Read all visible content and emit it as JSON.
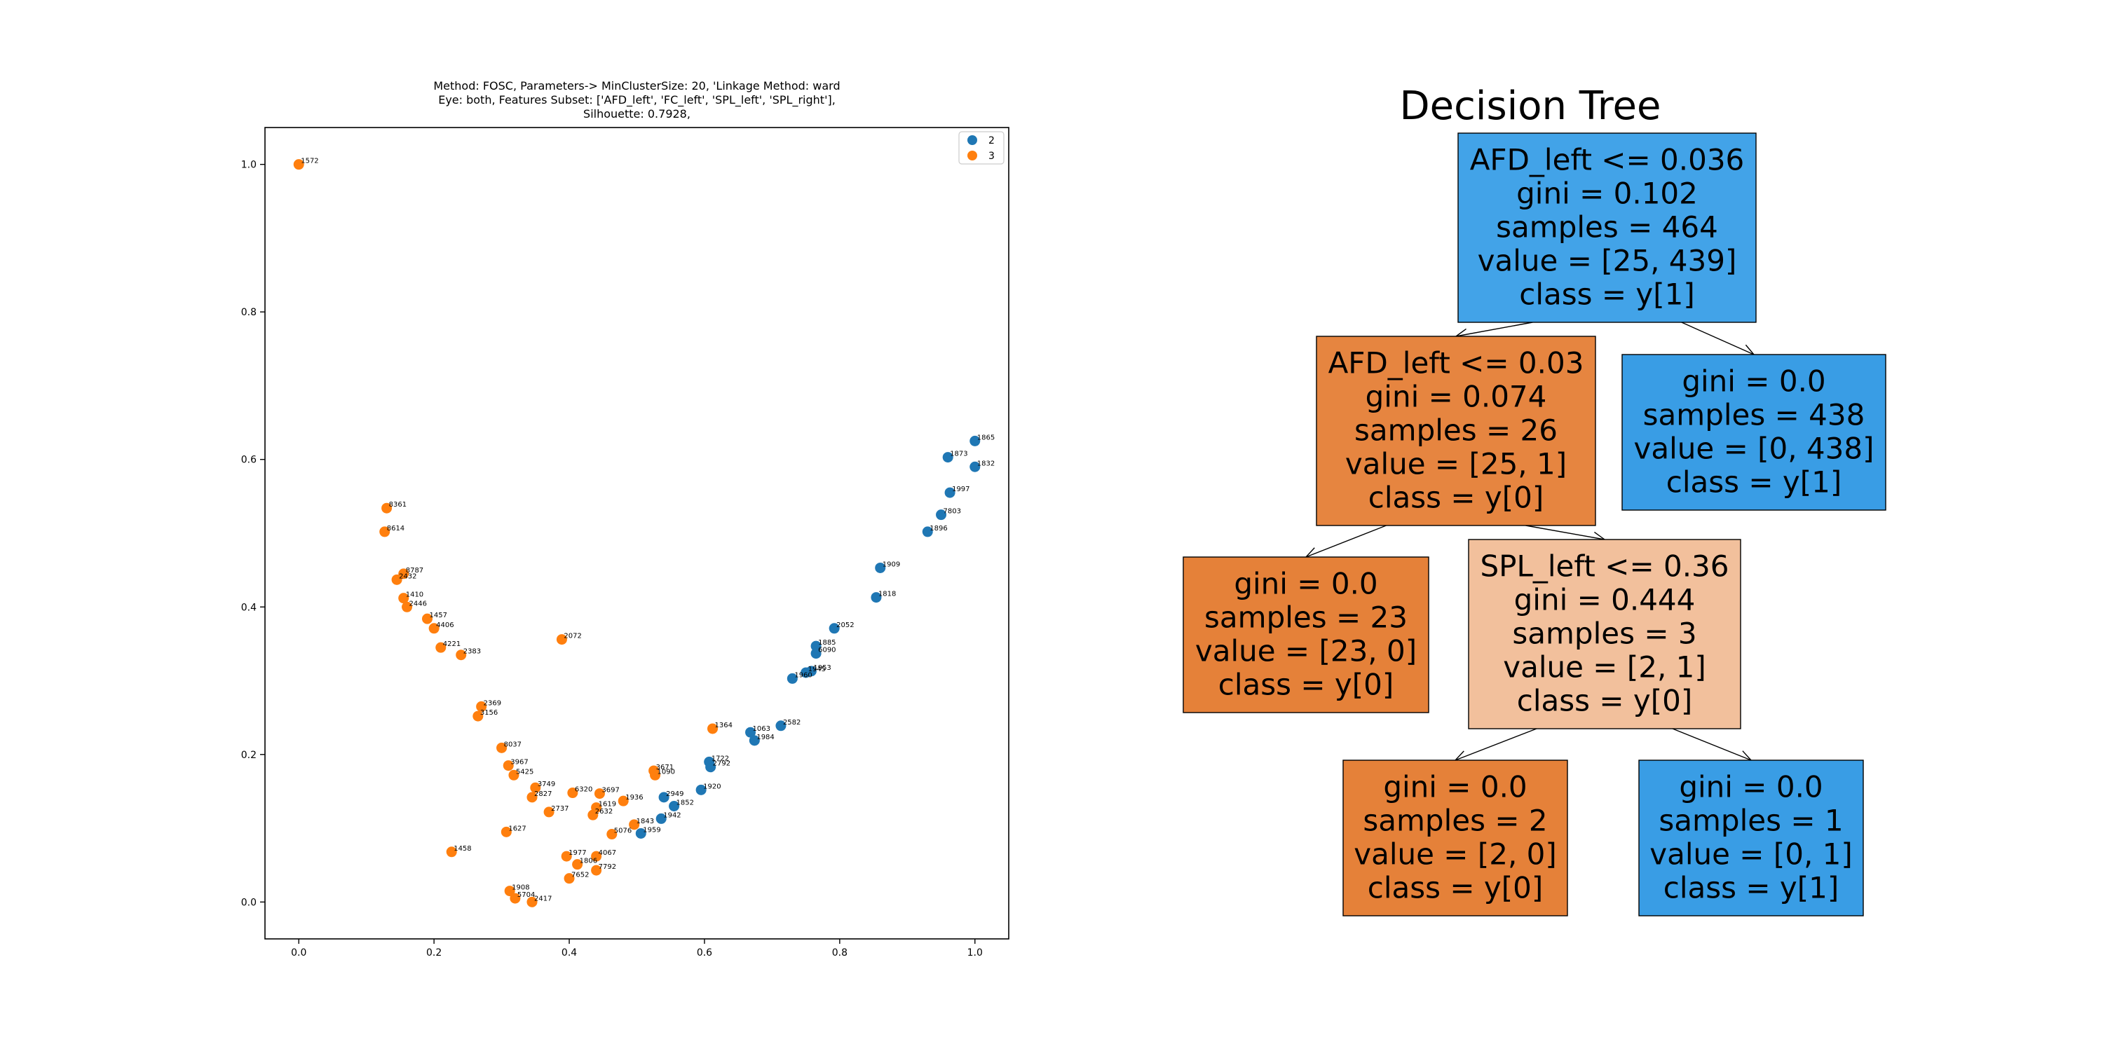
{
  "chart_data": [
    {
      "type": "scatter",
      "title_lines": [
        "Method: FOSC, Parameters-> MinClusterSize: 20, 'Linkage Method: ward",
        "Eye: both, Features Subset: ['AFD_left', 'FC_left', 'SPL_left', 'SPL_right'],",
        "Silhouette: 0.7928,"
      ],
      "xlabel": "",
      "ylabel": "",
      "xlim": [
        -0.05,
        1.05
      ],
      "ylim": [
        -0.05,
        1.05
      ],
      "xticks": [
        "0.0",
        "0.2",
        "0.4",
        "0.6",
        "0.8",
        "1.0"
      ],
      "yticks": [
        "0.0",
        "0.2",
        "0.4",
        "0.6",
        "0.8",
        "1.0"
      ],
      "legend_position": "top-right",
      "grid": false,
      "series": [
        {
          "name": "2",
          "color": "#1f77b4",
          "points": [
            {
              "x": 1.0,
              "y": 0.625,
              "label": "1865"
            },
            {
              "x": 0.96,
              "y": 0.603,
              "label": "1873"
            },
            {
              "x": 1.0,
              "y": 0.59,
              "label": "1832"
            },
            {
              "x": 0.963,
              "y": 0.555,
              "label": "1997"
            },
            {
              "x": 0.95,
              "y": 0.525,
              "label": "7803"
            },
            {
              "x": 0.93,
              "y": 0.502,
              "label": "1896"
            },
            {
              "x": 0.86,
              "y": 0.453,
              "label": "1909"
            },
            {
              "x": 0.854,
              "y": 0.413,
              "label": "1818"
            },
            {
              "x": 0.792,
              "y": 0.371,
              "label": "2052"
            },
            {
              "x": 0.765,
              "y": 0.347,
              "label": "1885"
            },
            {
              "x": 0.765,
              "y": 0.337,
              "label": "6090"
            },
            {
              "x": 0.758,
              "y": 0.313,
              "label": "1953"
            },
            {
              "x": 0.75,
              "y": 0.311,
              "label": "1945"
            },
            {
              "x": 0.73,
              "y": 0.303,
              "label": "1960"
            },
            {
              "x": 0.713,
              "y": 0.239,
              "label": "2582"
            },
            {
              "x": 0.668,
              "y": 0.23,
              "label": "1063"
            },
            {
              "x": 0.674,
              "y": 0.219,
              "label": "1984"
            },
            {
              "x": 0.607,
              "y": 0.19,
              "label": "1722"
            },
            {
              "x": 0.609,
              "y": 0.183,
              "label": "2792"
            },
            {
              "x": 0.595,
              "y": 0.152,
              "label": "1920"
            },
            {
              "x": 0.54,
              "y": 0.142,
              "label": "2949"
            },
            {
              "x": 0.555,
              "y": 0.13,
              "label": "1852"
            },
            {
              "x": 0.536,
              "y": 0.113,
              "label": "1942"
            },
            {
              "x": 0.506,
              "y": 0.093,
              "label": "1959"
            }
          ]
        },
        {
          "name": "3",
          "color": "#ff7f0e",
          "points": [
            {
              "x": 0.0,
              "y": 1.0,
              "label": "1572"
            },
            {
              "x": 0.13,
              "y": 0.534,
              "label": "8361"
            },
            {
              "x": 0.127,
              "y": 0.502,
              "label": "8614"
            },
            {
              "x": 0.155,
              "y": 0.445,
              "label": "8787"
            },
            {
              "x": 0.145,
              "y": 0.437,
              "label": "2432"
            },
            {
              "x": 0.155,
              "y": 0.412,
              "label": "1410"
            },
            {
              "x": 0.389,
              "y": 0.356,
              "label": "2072"
            },
            {
              "x": 0.612,
              "y": 0.235,
              "label": "1364"
            },
            {
              "x": 0.525,
              "y": 0.178,
              "label": "3671"
            },
            {
              "x": 0.527,
              "y": 0.172,
              "label": "1090"
            },
            {
              "x": 0.445,
              "y": 0.147,
              "label": "3697"
            },
            {
              "x": 0.48,
              "y": 0.137,
              "label": "1936"
            },
            {
              "x": 0.405,
              "y": 0.148,
              "label": "6320"
            },
            {
              "x": 0.44,
              "y": 0.128,
              "label": "1619"
            },
            {
              "x": 0.435,
              "y": 0.118,
              "label": "2632"
            },
            {
              "x": 0.496,
              "y": 0.105,
              "label": "1843"
            },
            {
              "x": 0.463,
              "y": 0.092,
              "label": "5076"
            },
            {
              "x": 0.35,
              "y": 0.155,
              "label": "3749"
            },
            {
              "x": 0.345,
              "y": 0.142,
              "label": "2827"
            },
            {
              "x": 0.37,
              "y": 0.122,
              "label": "2737"
            },
            {
              "x": 0.307,
              "y": 0.095,
              "label": "1627"
            },
            {
              "x": 0.226,
              "y": 0.068,
              "label": "1458"
            },
            {
              "x": 0.44,
              "y": 0.062,
              "label": "4067"
            },
            {
              "x": 0.44,
              "y": 0.043,
              "label": "7792"
            },
            {
              "x": 0.4,
              "y": 0.032,
              "label": "7652"
            },
            {
              "x": 0.412,
              "y": 0.051,
              "label": "1806"
            },
            {
              "x": 0.396,
              "y": 0.062,
              "label": "1977"
            },
            {
              "x": 0.312,
              "y": 0.015,
              "label": "1908"
            },
            {
              "x": 0.32,
              "y": 0.005,
              "label": "5704"
            },
            {
              "x": 0.345,
              "y": 0.0,
              "label": "2417"
            },
            {
              "x": 0.21,
              "y": 0.345,
              "label": "4221"
            },
            {
              "x": 0.24,
              "y": 0.335,
              "label": "2383"
            },
            {
              "x": 0.27,
              "y": 0.265,
              "label": "2369"
            },
            {
              "x": 0.265,
              "y": 0.252,
              "label": "3156"
            },
            {
              "x": 0.3,
              "y": 0.209,
              "label": "8037"
            },
            {
              "x": 0.31,
              "y": 0.185,
              "label": "3967"
            },
            {
              "x": 0.318,
              "y": 0.172,
              "label": "5425"
            },
            {
              "x": 0.16,
              "y": 0.4,
              "label": "2446"
            },
            {
              "x": 0.19,
              "y": 0.384,
              "label": "1457"
            },
            {
              "x": 0.2,
              "y": 0.371,
              "label": "4406"
            }
          ]
        }
      ]
    },
    {
      "type": "tree",
      "title": "Decision Tree",
      "nodes": [
        {
          "lines": [
            "AFD_left <= 0.036",
            "gini = 0.102",
            "samples = 464",
            "value = [25, 439]",
            "class = y[1]"
          ],
          "fill": "#42a3e8"
        },
        {
          "lines": [
            "AFD_left <= 0.03",
            "gini = 0.074",
            "samples = 26",
            "value = [25, 1]",
            "class = y[0]"
          ],
          "fill": "#e68540"
        },
        {
          "lines": [
            "gini = 0.0",
            "samples = 438",
            "value = [0, 438]",
            "class = y[1]"
          ],
          "fill": "#399de5"
        },
        {
          "lines": [
            "gini = 0.0",
            "samples = 23",
            "value = [23, 0]",
            "class = y[0]"
          ],
          "fill": "#e58139"
        },
        {
          "lines": [
            "SPL_left <= 0.36",
            "gini = 0.444",
            "samples = 3",
            "value = [2, 1]",
            "class = y[0]"
          ],
          "fill": "#f2c09c"
        },
        {
          "lines": [
            "gini = 0.0",
            "samples = 2",
            "value = [2, 0]",
            "class = y[0]"
          ],
          "fill": "#e58139"
        },
        {
          "lines": [
            "gini = 0.0",
            "samples = 1",
            "value = [0, 1]",
            "class = y[1]"
          ],
          "fill": "#399de5"
        }
      ],
      "edges": [
        [
          0,
          1
        ],
        [
          0,
          2
        ],
        [
          1,
          3
        ],
        [
          1,
          4
        ],
        [
          4,
          5
        ],
        [
          4,
          6
        ]
      ]
    }
  ]
}
